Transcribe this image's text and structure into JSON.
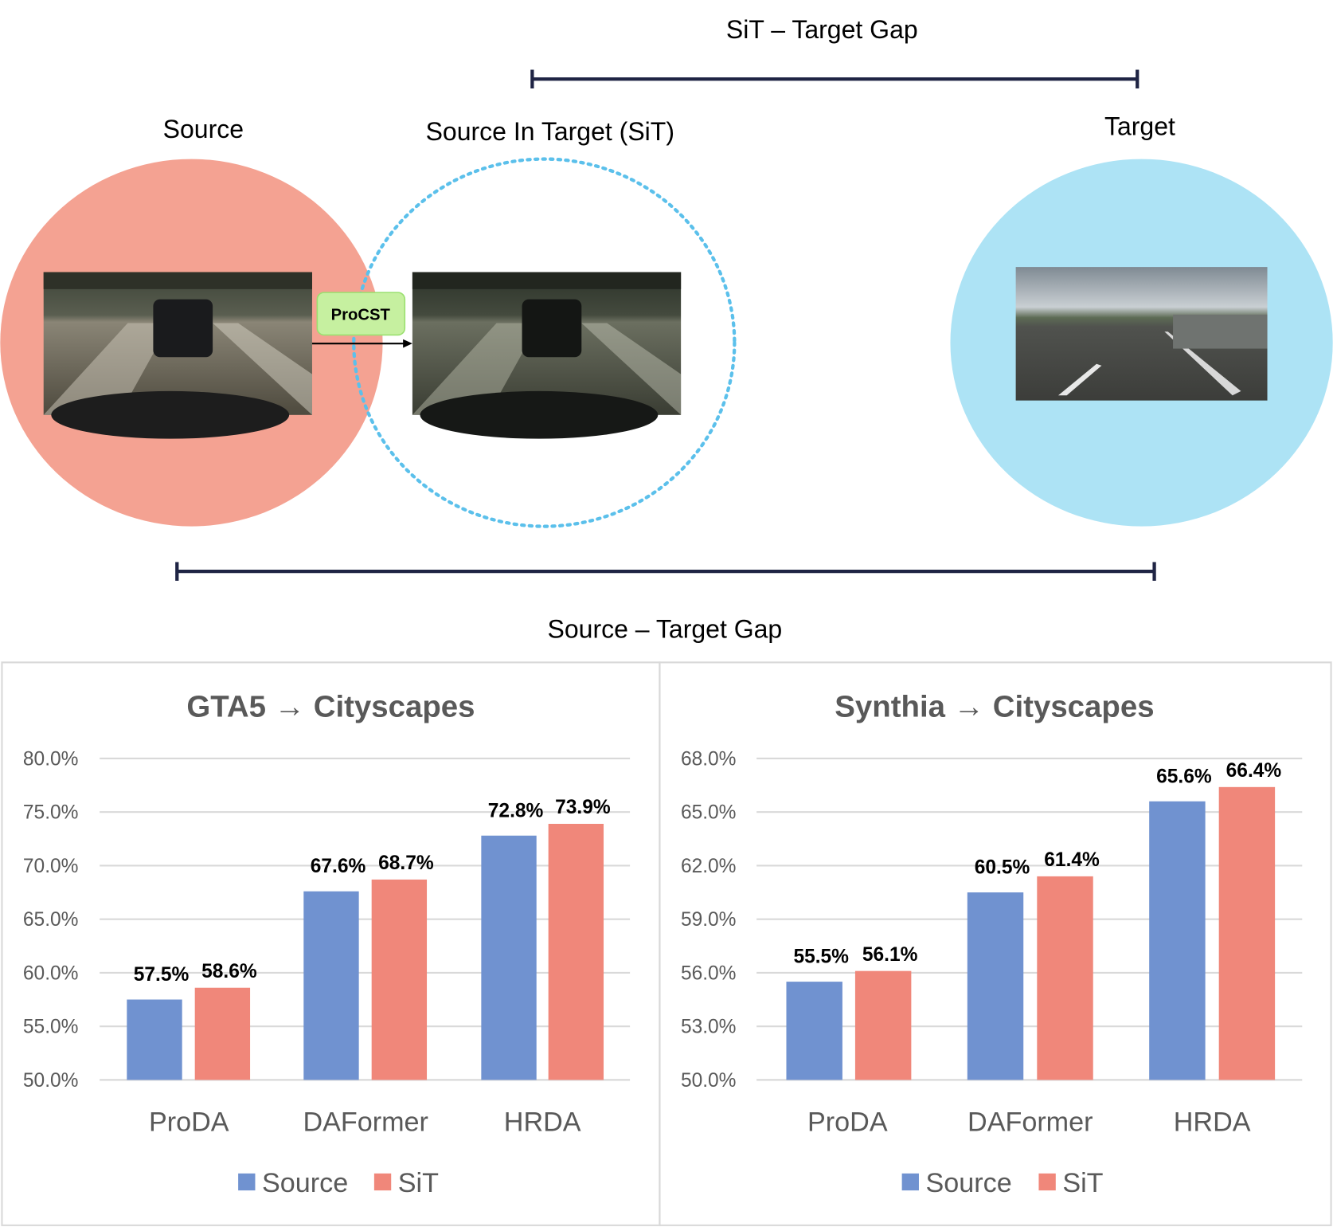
{
  "diagram": {
    "sit_target_gap_label": "SiT – Target Gap",
    "source_target_gap_label": "Source – Target Gap",
    "source_label": "Source",
    "sit_label": "Source In Target (SiT)",
    "target_label": "Target",
    "method_label": "ProCST",
    "colors": {
      "source": "#f4a292",
      "sit_ring": "#5bc0eb",
      "target": "#ade3f5",
      "method_box": "#c6f0a0",
      "gap_bar": "#1f2444"
    }
  },
  "chart_data": [
    {
      "type": "bar",
      "title": "GTA5 → Cityscapes",
      "categories": [
        "ProDA",
        "DAFormer",
        "HRDA"
      ],
      "series": [
        {
          "name": "Source",
          "color": "#7092d0",
          "values": [
            57.5,
            67.6,
            72.8
          ],
          "labels": [
            "57.5%",
            "67.6%",
            "72.8%"
          ]
        },
        {
          "name": "SiT",
          "color": "#f0877a",
          "values": [
            58.6,
            68.7,
            73.9
          ],
          "labels": [
            "58.6%",
            "68.7%",
            "73.9%"
          ]
        }
      ],
      "ylim": [
        50,
        80
      ],
      "yticks": [
        "50.0%",
        "55.0%",
        "60.0%",
        "65.0%",
        "70.0%",
        "75.0%",
        "80.0%"
      ],
      "grid": true,
      "legend": "bottom"
    },
    {
      "type": "bar",
      "title": "Synthia → Cityscapes",
      "categories": [
        "ProDA",
        "DAFormer",
        "HRDA"
      ],
      "series": [
        {
          "name": "Source",
          "color": "#7092d0",
          "values": [
            55.5,
            60.5,
            65.6
          ],
          "labels": [
            "55.5%",
            "60.5%",
            "65.6%"
          ]
        },
        {
          "name": "SiT",
          "color": "#f0877a",
          "values": [
            56.1,
            61.4,
            66.4
          ],
          "labels": [
            "56.1%",
            "61.4%",
            "66.4%"
          ]
        }
      ],
      "ylim": [
        50,
        68
      ],
      "yticks": [
        "50.0%",
        "53.0%",
        "56.0%",
        "59.0%",
        "62.0%",
        "65.0%",
        "68.0%"
      ],
      "grid": true,
      "legend": "bottom"
    }
  ]
}
